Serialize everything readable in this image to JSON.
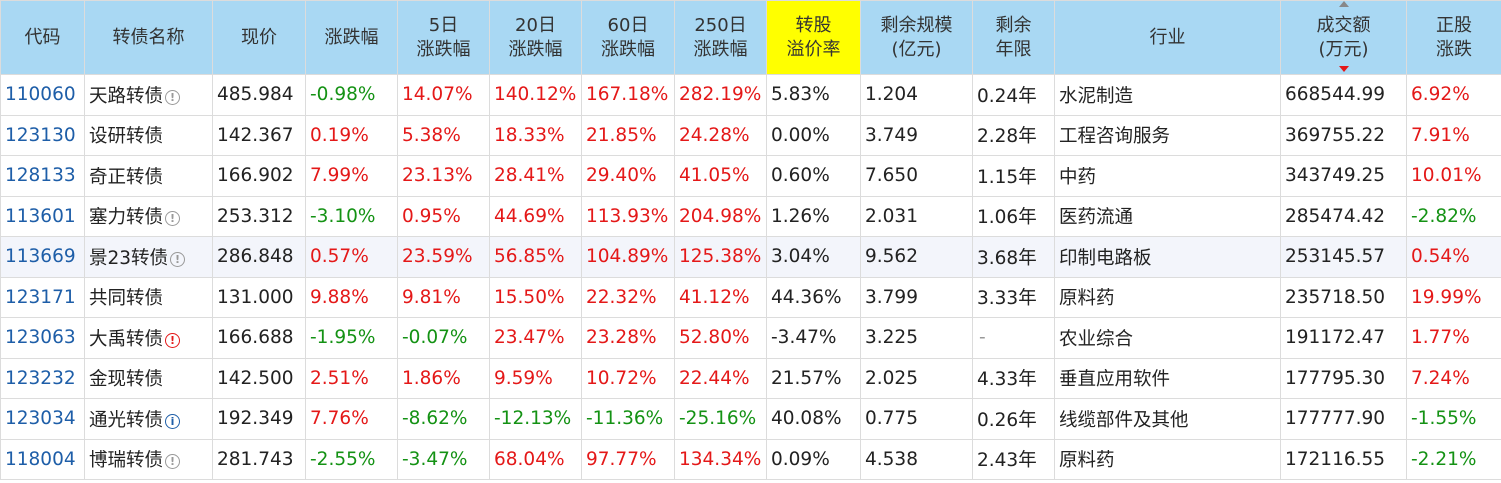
{
  "headers": [
    {
      "key": "code",
      "lines": [
        "代码"
      ]
    },
    {
      "key": "name",
      "lines": [
        "转债名称"
      ]
    },
    {
      "key": "price",
      "lines": [
        "现价"
      ]
    },
    {
      "key": "chg",
      "lines": [
        "涨跌幅"
      ]
    },
    {
      "key": "chg5",
      "lines": [
        "5日",
        "涨跌幅"
      ]
    },
    {
      "key": "chg20",
      "lines": [
        "20日",
        "涨跌幅"
      ]
    },
    {
      "key": "chg60",
      "lines": [
        "60日",
        "涨跌幅"
      ]
    },
    {
      "key": "chg250",
      "lines": [
        "250日",
        "涨跌幅"
      ]
    },
    {
      "key": "premium",
      "lines": [
        "转股",
        "溢价率"
      ]
    },
    {
      "key": "scale",
      "lines": [
        "剩余规模",
        "(亿元)"
      ]
    },
    {
      "key": "years",
      "lines": [
        "剩余",
        "年限"
      ]
    },
    {
      "key": "industry",
      "lines": [
        "行业"
      ]
    },
    {
      "key": "volume",
      "lines": [
        "成交额",
        "(万元)"
      ]
    },
    {
      "key": "stock_chg",
      "lines": [
        "正股",
        "涨跌"
      ]
    }
  ],
  "rows": [
    {
      "code": "110060",
      "name": "天路转债",
      "icon": "gray",
      "price": "485.984",
      "chg": "-0.98%",
      "chg5": "14.07%",
      "chg20": "140.12%",
      "chg60": "167.18%",
      "chg250": "282.19%",
      "premium": "5.83%",
      "scale": "1.204",
      "years": "0.24年",
      "industry": "水泥制造",
      "volume": "668544.99",
      "stock_chg": "6.92%"
    },
    {
      "code": "123130",
      "name": "设研转债",
      "icon": "",
      "price": "142.367",
      "chg": "0.19%",
      "chg5": "5.38%",
      "chg20": "18.33%",
      "chg60": "21.85%",
      "chg250": "24.28%",
      "premium": "0.00%",
      "scale": "3.749",
      "years": "2.28年",
      "industry": "工程咨询服务",
      "volume": "369755.22",
      "stock_chg": "7.91%"
    },
    {
      "code": "128133",
      "name": "奇正转债",
      "icon": "",
      "price": "166.902",
      "chg": "7.99%",
      "chg5": "23.13%",
      "chg20": "28.41%",
      "chg60": "29.40%",
      "chg250": "41.05%",
      "premium": "0.60%",
      "scale": "7.650",
      "years": "1.15年",
      "industry": "中药",
      "volume": "343749.25",
      "stock_chg": "10.01%"
    },
    {
      "code": "113601",
      "name": "塞力转债",
      "icon": "gray",
      "price": "253.312",
      "chg": "-3.10%",
      "chg5": "0.95%",
      "chg20": "44.69%",
      "chg60": "113.93%",
      "chg250": "204.98%",
      "premium": "1.26%",
      "scale": "2.031",
      "years": "1.06年",
      "industry": "医药流通",
      "volume": "285474.42",
      "stock_chg": "-2.82%"
    },
    {
      "code": "113669",
      "name": "景23转债",
      "icon": "gray",
      "price": "286.848",
      "chg": "0.57%",
      "chg5": "23.59%",
      "chg20": "56.85%",
      "chg60": "104.89%",
      "chg250": "125.38%",
      "premium": "3.04%",
      "scale": "9.562",
      "years": "3.68年",
      "industry": "印制电路板",
      "volume": "253145.57",
      "stock_chg": "0.54%"
    },
    {
      "code": "123171",
      "name": "共同转债",
      "icon": "",
      "price": "131.000",
      "chg": "9.88%",
      "chg5": "9.81%",
      "chg20": "15.50%",
      "chg60": "22.32%",
      "chg250": "41.12%",
      "premium": "44.36%",
      "scale": "3.799",
      "years": "3.33年",
      "industry": "原料药",
      "volume": "235718.50",
      "stock_chg": "19.99%"
    },
    {
      "code": "123063",
      "name": "大禹转债",
      "icon": "red",
      "price": "166.688",
      "chg": "-1.95%",
      "chg5": "-0.07%",
      "chg20": "23.47%",
      "chg60": "23.28%",
      "chg250": "52.80%",
      "premium": "-3.47%",
      "scale": "3.225",
      "years": "-",
      "industry": "农业综合",
      "volume": "191172.47",
      "stock_chg": "1.77%"
    },
    {
      "code": "123232",
      "name": "金现转债",
      "icon": "",
      "price": "142.500",
      "chg": "2.51%",
      "chg5": "1.86%",
      "chg20": "9.59%",
      "chg60": "10.72%",
      "chg250": "22.44%",
      "premium": "21.57%",
      "scale": "2.025",
      "years": "4.33年",
      "industry": "垂直应用软件",
      "volume": "177795.30",
      "stock_chg": "7.24%"
    },
    {
      "code": "123034",
      "name": "通光转债",
      "icon": "blue",
      "price": "192.349",
      "chg": "7.76%",
      "chg5": "-8.62%",
      "chg20": "-12.13%",
      "chg60": "-11.36%",
      "chg250": "-25.16%",
      "premium": "40.08%",
      "scale": "0.775",
      "years": "0.26年",
      "industry": "线缆部件及其他",
      "volume": "177777.90",
      "stock_chg": "-1.55%"
    },
    {
      "code": "118004",
      "name": "博瑞转债",
      "icon": "gray",
      "price": "281.743",
      "chg": "-2.55%",
      "chg5": "-3.47%",
      "chg20": "68.04%",
      "chg60": "97.77%",
      "chg250": "134.34%",
      "premium": "0.09%",
      "scale": "4.538",
      "years": "2.43年",
      "industry": "原料药",
      "volume": "172116.55",
      "stock_chg": "-2.21%"
    }
  ],
  "colors": {
    "header_bg": "#a9d8f3",
    "highlight": "#ffff00",
    "up": "#e41818",
    "down": "#149214",
    "code": "#1e5ea8"
  },
  "icons": {
    "gray": "info-icon",
    "red": "alert-icon",
    "blue": "info-icon"
  }
}
